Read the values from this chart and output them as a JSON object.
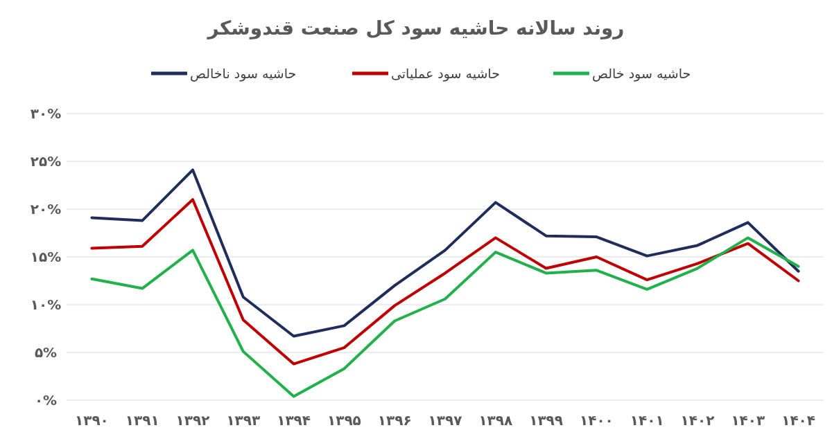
{
  "chart_data": {
    "type": "line",
    "title": "روند سالانه حاشیه سود کل صنعت قندوشکر",
    "categories": [
      "۱۳۹۰",
      "۱۳۹۱",
      "۱۳۹۲",
      "۱۳۹۳",
      "۱۳۹۴",
      "۱۳۹۵",
      "۱۳۹۶",
      "۱۳۹۷",
      "۱۳۹۸",
      "۱۳۹۹",
      "۱۴۰۰",
      "۱۴۰۱",
      "۱۴۰۲",
      "۱۴۰۳",
      "۱۴۰۴"
    ],
    "series": [
      {
        "name": "حاشیه سود ناخالص",
        "color": "#1f2d5c",
        "values": [
          19.1,
          18.8,
          24.1,
          10.8,
          6.7,
          7.8,
          12.0,
          15.7,
          20.7,
          17.2,
          17.1,
          15.1,
          16.2,
          18.6,
          13.5
        ]
      },
      {
        "name": "حاشیه سود عملیاتی",
        "color": "#c00000",
        "values": [
          15.9,
          16.1,
          21.0,
          8.4,
          3.8,
          5.5,
          9.9,
          13.3,
          17.0,
          13.8,
          15.0,
          12.6,
          14.3,
          16.4,
          12.5
        ]
      },
      {
        "name": "حاشیه سود خالص",
        "color": "#21b14a",
        "values": [
          12.7,
          11.7,
          15.7,
          5.1,
          0.4,
          3.3,
          8.3,
          10.6,
          15.5,
          13.3,
          13.6,
          11.6,
          13.8,
          17.0,
          14.0
        ]
      }
    ],
    "ylim": [
      0,
      30
    ],
    "yticks": [
      {
        "value": 0,
        "label": "۰%"
      },
      {
        "value": 5,
        "label": "۵%"
      },
      {
        "value": 10,
        "label": "۱۰%"
      },
      {
        "value": 15,
        "label": "۱۵%"
      },
      {
        "value": 20,
        "label": "۲۰%"
      },
      {
        "value": 25,
        "label": "۲۵%"
      },
      {
        "value": 30,
        "label": "۳۰%"
      }
    ],
    "grid": "y",
    "legend": "top",
    "marker": "none",
    "line_style": "solid"
  }
}
